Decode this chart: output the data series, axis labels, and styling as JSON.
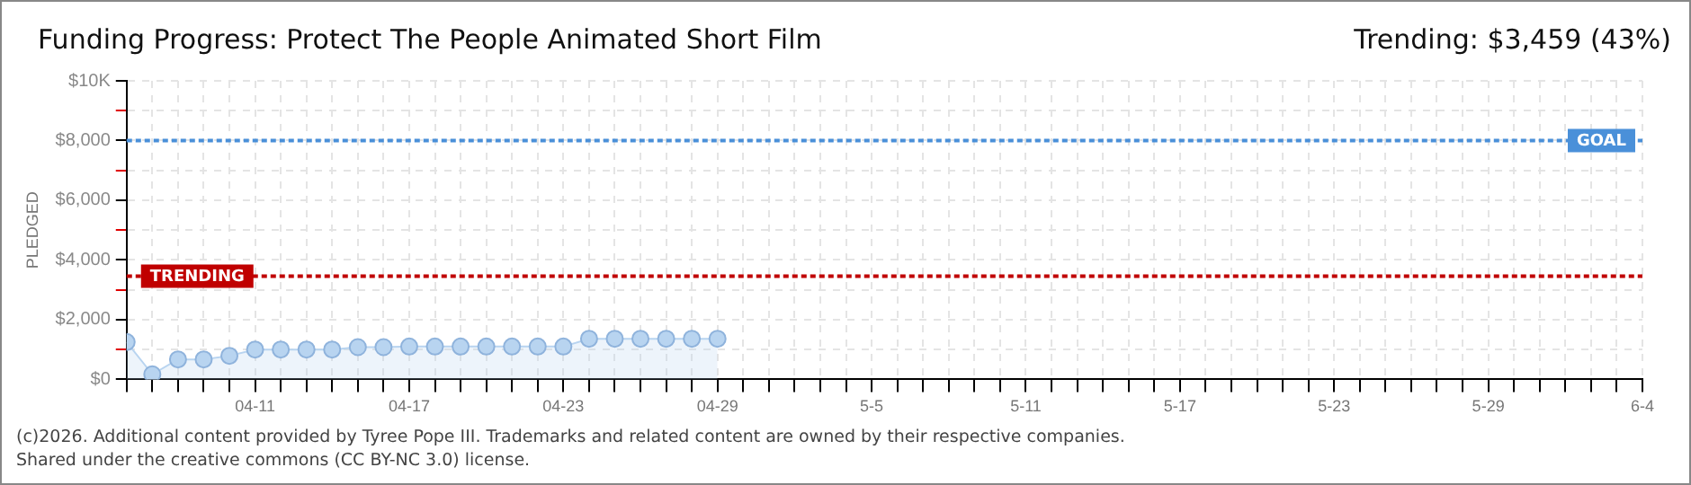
{
  "chart_data": {
    "type": "area",
    "title": "Funding Progress: Protect The People Animated Short Film",
    "subtitle": "Trending: $3,459 (43%)",
    "ylabel": "PLEDGED",
    "x": [
      "--04-06",
      "--04-07",
      "--04-08",
      "--04-09",
      "--04-10",
      "--04-11",
      "--04-12",
      "--04-13",
      "--04-14",
      "--04-15",
      "--04-16",
      "--04-17",
      "--04-18",
      "--04-19",
      "--04-20",
      "--04-21",
      "--04-22",
      "--04-23",
      "--04-24",
      "--04-25",
      "--04-26",
      "--04-27",
      "--04-28",
      "--04-29"
    ],
    "series": [
      {
        "color": "#b8d4f0",
        "values": [
          1250,
          170,
          670,
          670,
          790,
          1000,
          1000,
          1000,
          1000,
          1080,
          1080,
          1100,
          1100,
          1100,
          1100,
          1100,
          1100,
          1100,
          1360,
          1360,
          1360,
          1360,
          1360,
          1360
        ]
      }
    ],
    "xlim": [
      "--04-06",
      "--06-04"
    ],
    "xticks": [
      {
        "value": "--04-06",
        "label": null
      },
      {
        "value": "--04-07",
        "label": null
      },
      {
        "value": "--04-08",
        "label": null
      },
      {
        "value": "--04-09",
        "label": null
      },
      {
        "value": "--04-10",
        "label": null
      },
      {
        "value": "--04-11",
        "label": "04-11"
      },
      {
        "value": "--04-12",
        "label": null
      },
      {
        "value": "--04-13",
        "label": null
      },
      {
        "value": "--04-14",
        "label": null
      },
      {
        "value": "--04-15",
        "label": null
      },
      {
        "value": "--04-16",
        "label": null
      },
      {
        "value": "--04-17",
        "label": "04-17"
      },
      {
        "value": "--04-18",
        "label": null
      },
      {
        "value": "--04-19",
        "label": null
      },
      {
        "value": "--04-20",
        "label": null
      },
      {
        "value": "--04-21",
        "label": null
      },
      {
        "value": "--04-22",
        "label": null
      },
      {
        "value": "--04-23",
        "label": "04-23"
      },
      {
        "value": "--04-24",
        "label": null
      },
      {
        "value": "--04-25",
        "label": null
      },
      {
        "value": "--04-26",
        "label": null
      },
      {
        "value": "--04-27",
        "label": null
      },
      {
        "value": "--04-28",
        "label": null
      },
      {
        "value": "--04-29",
        "label": "04-29"
      },
      {
        "value": "--04-30",
        "label": null
      },
      {
        "value": "--05-01",
        "label": null
      },
      {
        "value": "--05-02",
        "label": null
      },
      {
        "value": "--05-03",
        "label": null
      },
      {
        "value": "--05-04",
        "label": null
      },
      {
        "value": "--05-05",
        "label": "5-5"
      },
      {
        "value": "--05-06",
        "label": null
      },
      {
        "value": "--05-07",
        "label": null
      },
      {
        "value": "--05-08",
        "label": null
      },
      {
        "value": "--05-09",
        "label": null
      },
      {
        "value": "--05-10",
        "label": null
      },
      {
        "value": "--05-11",
        "label": "5-11"
      },
      {
        "value": "--05-12",
        "label": null
      },
      {
        "value": "--05-13",
        "label": null
      },
      {
        "value": "--05-14",
        "label": null
      },
      {
        "value": "--05-15",
        "label": null
      },
      {
        "value": "--05-16",
        "label": null
      },
      {
        "value": "--05-17",
        "label": "5-17"
      },
      {
        "value": "--05-18",
        "label": null
      },
      {
        "value": "--05-19",
        "label": null
      },
      {
        "value": "--05-20",
        "label": null
      },
      {
        "value": "--05-21",
        "label": null
      },
      {
        "value": "--05-22",
        "label": null
      },
      {
        "value": "--05-23",
        "label": "5-23"
      },
      {
        "value": "--05-24",
        "label": null
      },
      {
        "value": "--05-25",
        "label": null
      },
      {
        "value": "--05-26",
        "label": null
      },
      {
        "value": "--05-27",
        "label": null
      },
      {
        "value": "--05-28",
        "label": null
      },
      {
        "value": "--05-29",
        "label": "5-29"
      },
      {
        "value": "--05-30",
        "label": null
      },
      {
        "value": "--05-31",
        "label": null
      },
      {
        "value": "--06-01",
        "label": null
      },
      {
        "value": "--06-02",
        "label": null
      },
      {
        "value": "--06-03",
        "label": null
      },
      {
        "value": "--06-04",
        "label": "6-4"
      }
    ],
    "ylim": [
      0,
      10000
    ],
    "yticks": [
      {
        "value": 0,
        "label": "$0"
      },
      {
        "value": 1000,
        "label": null
      },
      {
        "value": 2000,
        "label": "$2,000"
      },
      {
        "value": 3000,
        "label": null
      },
      {
        "value": 4000,
        "label": "$4,000"
      },
      {
        "value": 5000,
        "label": null
      },
      {
        "value": 6000,
        "label": "$6,000"
      },
      {
        "value": 7000,
        "label": null
      },
      {
        "value": 8000,
        "label": "$8,000"
      },
      {
        "value": 9000,
        "label": null
      },
      {
        "value": 10000,
        "label": "$10K"
      }
    ],
    "ref_lines": [
      {
        "axis": "y",
        "value": 8000,
        "label": "GOAL",
        "color": "#4a90d9",
        "line_style": "dotted"
      },
      {
        "axis": "y",
        "value": 3459,
        "label": "TRENDING",
        "color": "#c00000",
        "line_style": "dotted"
      }
    ],
    "annotations": [
      "(c)2026. Additional content provided by Tyree Pope III. Trademarks and related content are owned by their respective companies.",
      "Shared under the creative commons (CC BY-NC 3.0) license."
    ],
    "grid": true,
    "legend": false,
    "marker": "circle",
    "line_style": "solid"
  }
}
